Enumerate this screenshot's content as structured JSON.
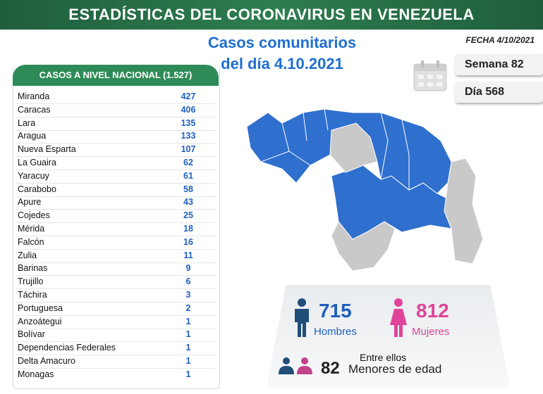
{
  "header": {
    "title": "ESTADÍSTICAS DEL CORONAVIRUS EN VENEZUELA",
    "subtitle_line1": "Casos comunitarios",
    "subtitle_line2": "del día 4.10.2021",
    "date": "FECHA 4/10/2021"
  },
  "counters": {
    "week": "Semana 82",
    "day": "Día 568"
  },
  "table": {
    "title": "CASOS A NIVEL NACIONAL (1.527)",
    "rows": [
      [
        "Miranda",
        427
      ],
      [
        "Caracas",
        406
      ],
      [
        "Lara",
        135
      ],
      [
        "Aragua",
        133
      ],
      [
        "Nueva Esparta",
        107
      ],
      [
        "La Guaira",
        62
      ],
      [
        "Yaracuy",
        61
      ],
      [
        "Carabobo",
        58
      ],
      [
        "Apure",
        43
      ],
      [
        "Cojedes",
        25
      ],
      [
        "Mérida",
        18
      ],
      [
        "Falcón",
        16
      ],
      [
        "Zulia",
        11
      ],
      [
        "Barinas",
        9
      ],
      [
        "Trujillo",
        6
      ],
      [
        "Táchira",
        3
      ],
      [
        "Portuguesa",
        2
      ],
      [
        "Anzoátegui",
        1
      ],
      [
        "Bolívar",
        1
      ],
      [
        "Dependencias Federales",
        1
      ],
      [
        "Delta Amacuro",
        1
      ],
      [
        "Monagas",
        1
      ]
    ]
  },
  "gender": {
    "men": {
      "value": 715,
      "label": "Hombres"
    },
    "women": {
      "value": 812,
      "label": "Mujeres"
    }
  },
  "minors": {
    "intro": "Entre ellos",
    "value": 82,
    "label": "Menores de edad"
  }
}
